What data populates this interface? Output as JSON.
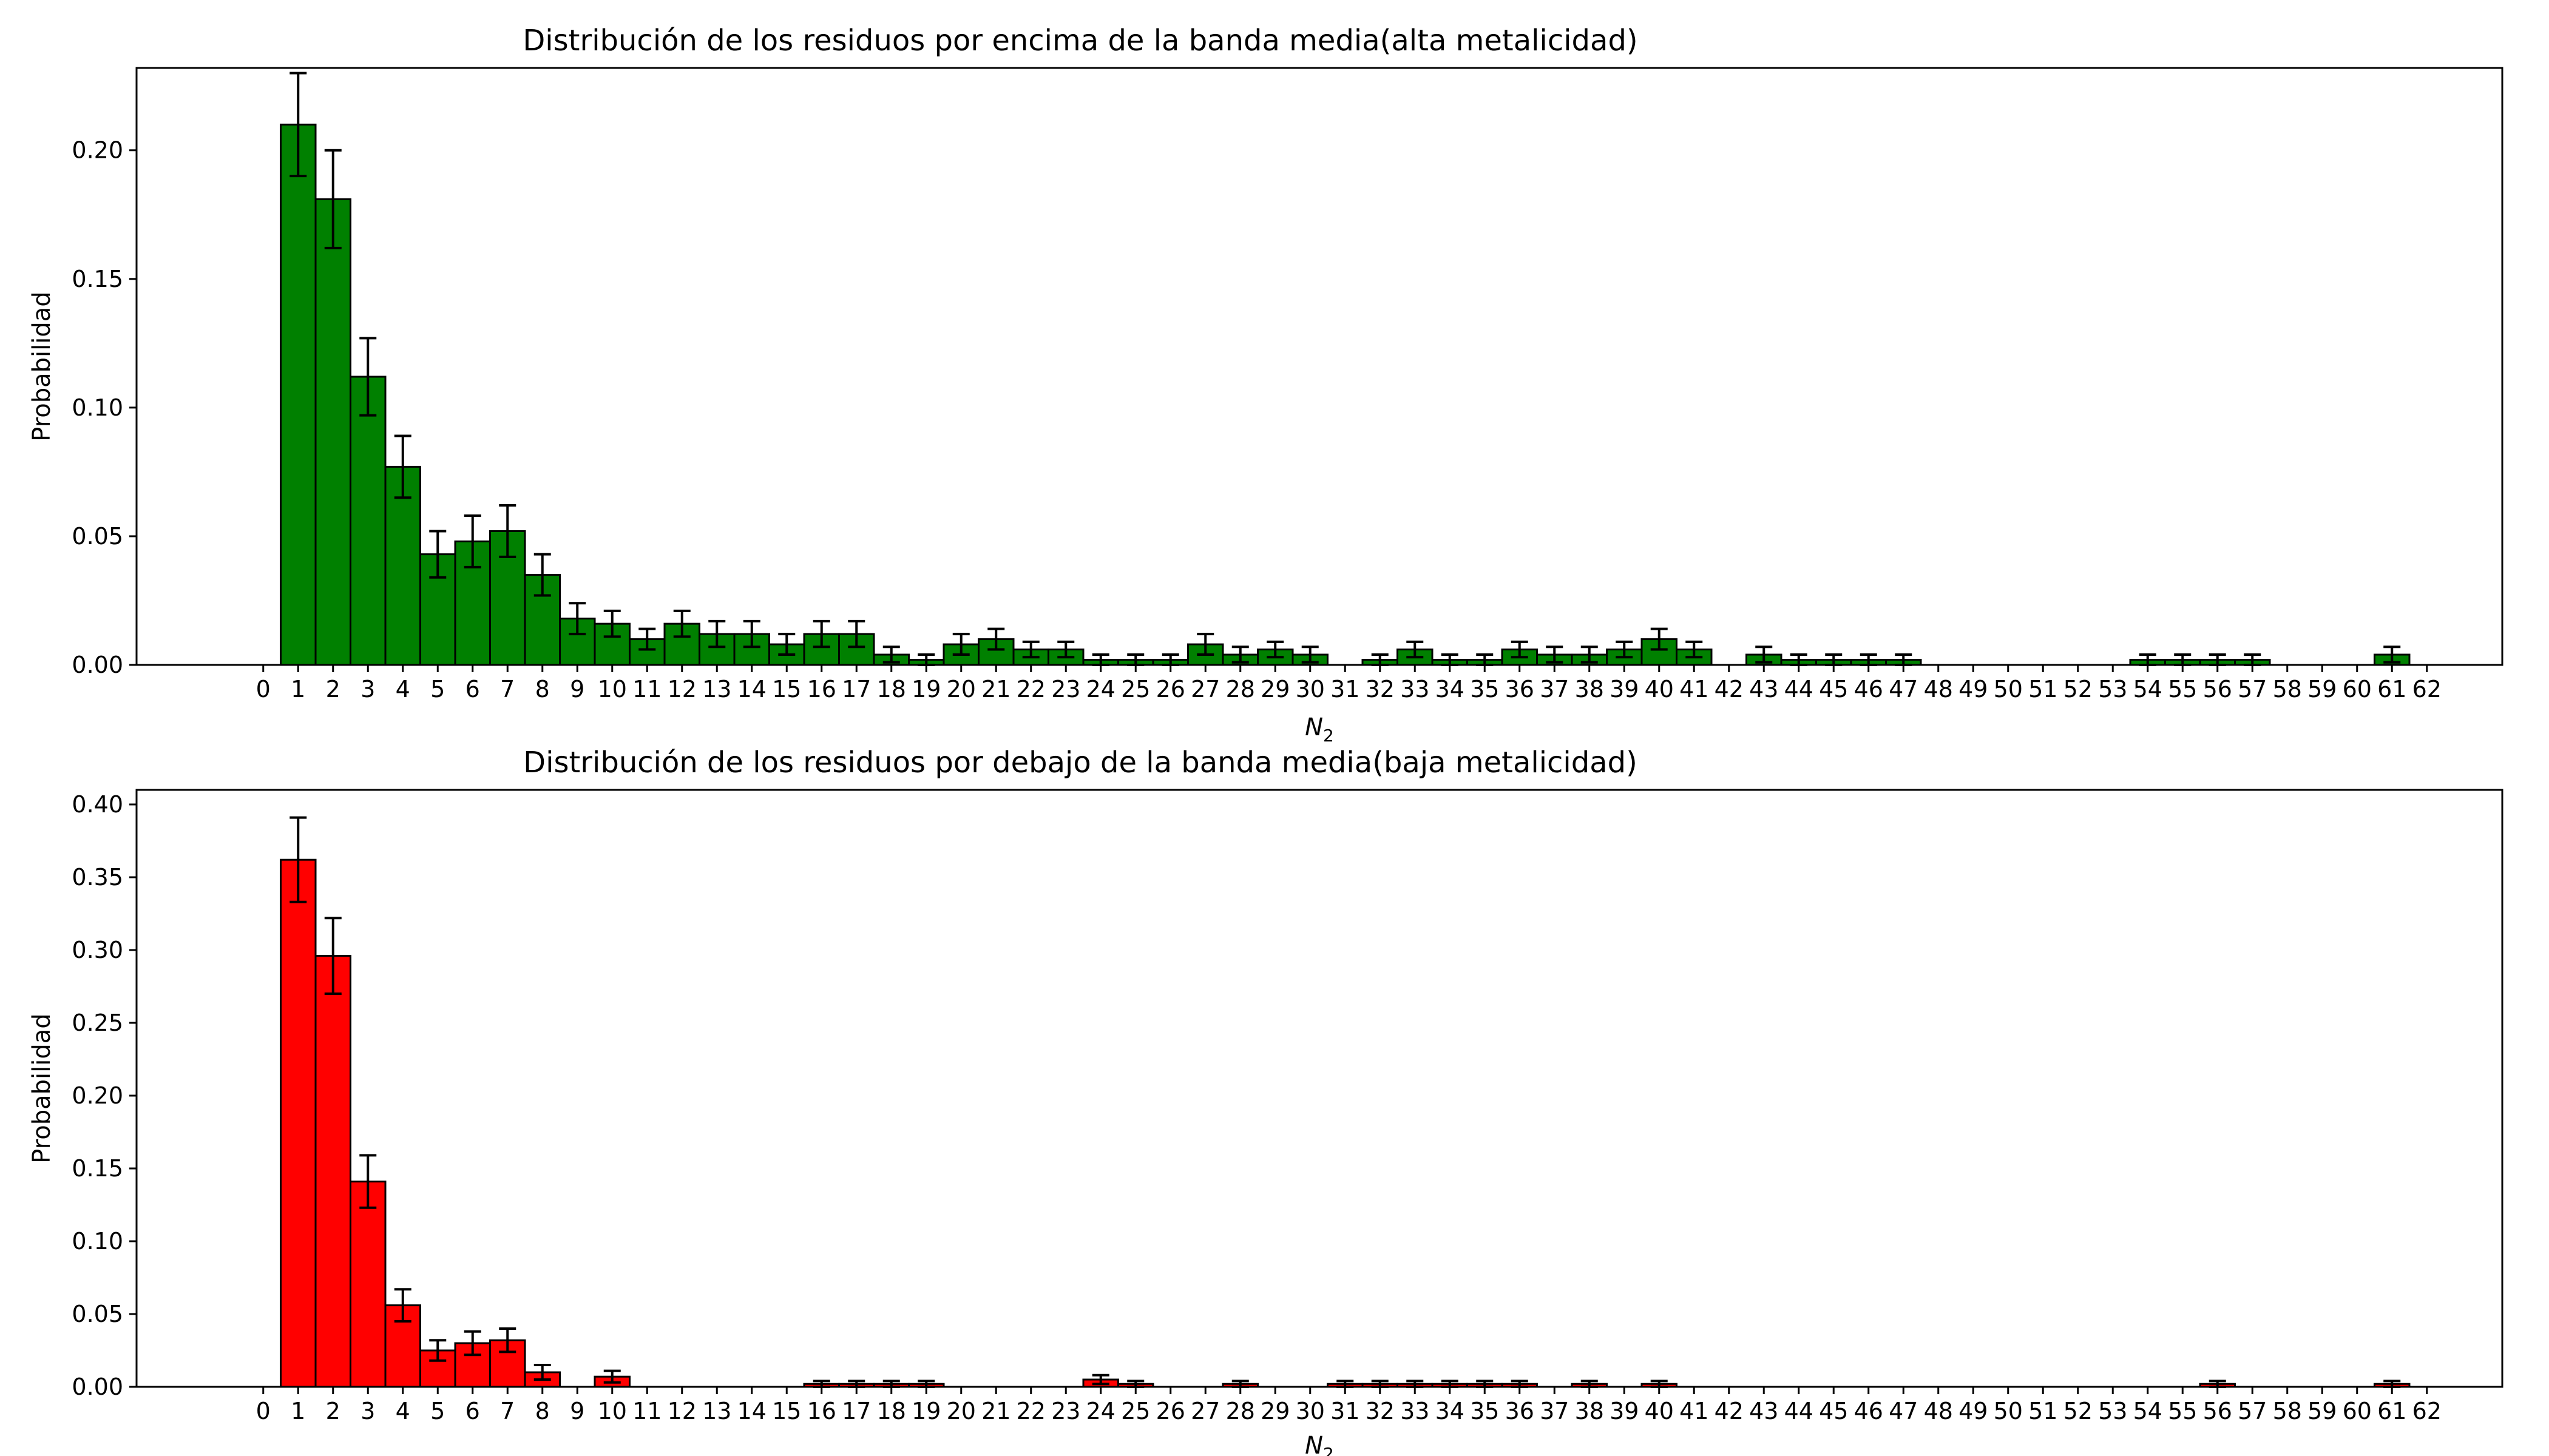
{
  "chart_data": [
    {
      "type": "bar",
      "title": "Distribución de los residuos por encima de la banda media(alta metalicidad)",
      "xlabel": "N",
      "xlabel_sub": "2",
      "ylabel": "Probabilidad",
      "ylim": [
        0,
        0.232
      ],
      "yticks": [
        "0.00",
        "0.05",
        "0.10",
        "0.15",
        "0.20"
      ],
      "color": "#008000",
      "categories": [
        "0",
        "1",
        "2",
        "3",
        "4",
        "5",
        "6",
        "7",
        "8",
        "9",
        "10",
        "11",
        "12",
        "13",
        "14",
        "15",
        "16",
        "17",
        "18",
        "19",
        "20",
        "21",
        "22",
        "23",
        "24",
        "25",
        "26",
        "27",
        "28",
        "29",
        "30",
        "31",
        "32",
        "33",
        "34",
        "35",
        "36",
        "37",
        "38",
        "39",
        "40",
        "41",
        "42",
        "43",
        "44",
        "45",
        "46",
        "47",
        "48",
        "49",
        "50",
        "51",
        "52",
        "53",
        "54",
        "55",
        "56",
        "57",
        "58",
        "59",
        "60",
        "61",
        "62"
      ],
      "values": [
        0,
        0.21,
        0.181,
        0.112,
        0.077,
        0.043,
        0.048,
        0.052,
        0.035,
        0.018,
        0.016,
        0.01,
        0.016,
        0.012,
        0.012,
        0.008,
        0.012,
        0.012,
        0.004,
        0.002,
        0.008,
        0.01,
        0.006,
        0.006,
        0.002,
        0.002,
        0.002,
        0.008,
        0.004,
        0.006,
        0.004,
        0,
        0.002,
        0.006,
        0.002,
        0.002,
        0.006,
        0.004,
        0.004,
        0.006,
        0.01,
        0.006,
        0,
        0.004,
        0.002,
        0.002,
        0.002,
        0.002,
        0,
        0,
        0,
        0,
        0,
        0,
        0.002,
        0.002,
        0.002,
        0.002,
        0,
        0,
        0,
        0.004,
        0
      ],
      "errors": [
        0,
        0.02,
        0.019,
        0.015,
        0.012,
        0.009,
        0.01,
        0.01,
        0.008,
        0.006,
        0.005,
        0.004,
        0.005,
        0.005,
        0.005,
        0.004,
        0.005,
        0.005,
        0.003,
        0.002,
        0.004,
        0.004,
        0.003,
        0.003,
        0.002,
        0.002,
        0.002,
        0.004,
        0.003,
        0.003,
        0.003,
        0,
        0.002,
        0.003,
        0.002,
        0.002,
        0.003,
        0.003,
        0.003,
        0.003,
        0.004,
        0.003,
        0,
        0.003,
        0.002,
        0.002,
        0.002,
        0.002,
        0,
        0,
        0,
        0,
        0,
        0,
        0.002,
        0.002,
        0.002,
        0.002,
        0,
        0,
        0,
        0.003,
        0
      ]
    },
    {
      "type": "bar",
      "title": "Distribución de los residuos por debajo de la banda media(baja metalicidad)",
      "xlabel": "N",
      "xlabel_sub": "2",
      "ylabel": "Probabilidad",
      "ylim": [
        0,
        0.41
      ],
      "yticks": [
        "0.00",
        "0.05",
        "0.10",
        "0.15",
        "0.20",
        "0.25",
        "0.30",
        "0.35",
        "0.40"
      ],
      "color": "#ff0000",
      "categories": [
        "0",
        "1",
        "2",
        "3",
        "4",
        "5",
        "6",
        "7",
        "8",
        "9",
        "10",
        "11",
        "12",
        "13",
        "14",
        "15",
        "16",
        "17",
        "18",
        "19",
        "20",
        "21",
        "22",
        "23",
        "24",
        "25",
        "26",
        "27",
        "28",
        "29",
        "30",
        "31",
        "32",
        "33",
        "34",
        "35",
        "36",
        "37",
        "38",
        "39",
        "40",
        "41",
        "42",
        "43",
        "44",
        "45",
        "46",
        "47",
        "48",
        "49",
        "50",
        "51",
        "52",
        "53",
        "54",
        "55",
        "56",
        "57",
        "58",
        "59",
        "60",
        "61",
        "62"
      ],
      "values": [
        0,
        0.362,
        0.296,
        0.141,
        0.056,
        0.025,
        0.03,
        0.032,
        0.01,
        0,
        0.007,
        0,
        0,
        0,
        0,
        0,
        0.002,
        0.002,
        0.002,
        0.002,
        0,
        0,
        0,
        0,
        0.005,
        0.002,
        0,
        0,
        0.002,
        0,
        0,
        0.002,
        0.002,
        0.002,
        0.002,
        0.002,
        0.002,
        0,
        0.002,
        0,
        0.002,
        0,
        0,
        0,
        0,
        0,
        0,
        0,
        0,
        0,
        0,
        0,
        0,
        0,
        0,
        0,
        0.002,
        0,
        0,
        0,
        0,
        0.002,
        0
      ],
      "errors": [
        0,
        0.029,
        0.026,
        0.018,
        0.011,
        0.007,
        0.008,
        0.008,
        0.005,
        0,
        0.004,
        0,
        0,
        0,
        0,
        0,
        0.002,
        0.002,
        0.002,
        0.002,
        0,
        0,
        0,
        0,
        0.003,
        0.002,
        0,
        0,
        0.002,
        0,
        0,
        0.002,
        0.002,
        0.002,
        0.002,
        0.002,
        0.002,
        0,
        0.002,
        0,
        0.002,
        0,
        0,
        0,
        0,
        0,
        0,
        0,
        0,
        0,
        0,
        0,
        0,
        0,
        0,
        0,
        0.002,
        0,
        0,
        0,
        0,
        0.002,
        0
      ]
    }
  ]
}
